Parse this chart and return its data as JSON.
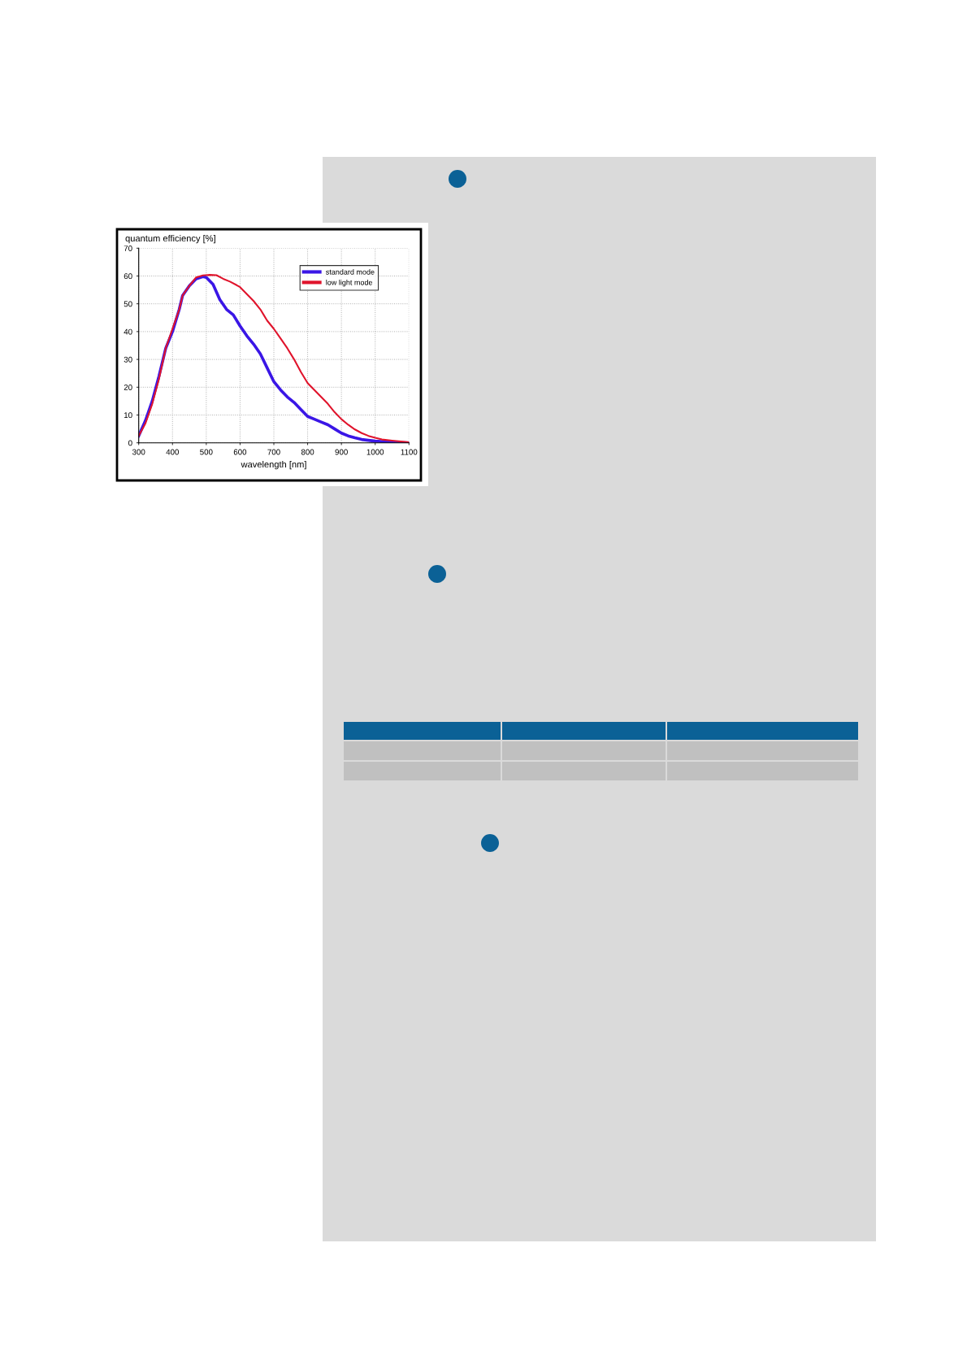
{
  "chart_data": {
    "type": "line",
    "ylabel": "quantum efficiency [%]",
    "xlabel": "wavelength [nm]",
    "xlim": [
      300,
      1100
    ],
    "xticks": [
      300,
      400,
      500,
      600,
      700,
      800,
      900,
      1000,
      1100
    ],
    "ylim": [
      0,
      70
    ],
    "yticks": [
      0,
      10,
      20,
      30,
      40,
      50,
      60,
      70
    ],
    "grid": true,
    "legend": "top right",
    "line_style": "solid",
    "series": [
      {
        "name": "standard mode",
        "color": "#3a16e6",
        "x": [
          300,
          320,
          340,
          360,
          380,
          400,
          420,
          430,
          450,
          470,
          490,
          500,
          520,
          540,
          560,
          580,
          600,
          620,
          640,
          660,
          680,
          700,
          720,
          740,
          760,
          780,
          800,
          820,
          840,
          860,
          880,
          900,
          920,
          940,
          960,
          980,
          1000,
          1050,
          1100
        ],
        "values": [
          2.5,
          8,
          15,
          24,
          34,
          40,
          48,
          53,
          56.5,
          59,
          59.8,
          59.5,
          57,
          51.5,
          48,
          46,
          42,
          38.5,
          35.5,
          32,
          27,
          22,
          19,
          16.5,
          14.5,
          12,
          9.5,
          8.5,
          7.5,
          6.5,
          5,
          3.5,
          2.5,
          1.8,
          1.2,
          0.9,
          0.6,
          0.2,
          0
        ]
      },
      {
        "name": "low light mode",
        "color": "#e0142c",
        "x": [
          300,
          320,
          340,
          360,
          380,
          400,
          420,
          430,
          450,
          470,
          490,
          510,
          530,
          550,
          570,
          590,
          600,
          620,
          640,
          660,
          670,
          680,
          700,
          720,
          740,
          760,
          780,
          800,
          820,
          840,
          860,
          880,
          900,
          920,
          940,
          960,
          980,
          1000,
          1020,
          1050,
          1100
        ],
        "values": [
          2.5,
          7,
          14,
          23,
          34,
          41,
          48,
          53,
          56.5,
          59.5,
          60.2,
          60.4,
          60.3,
          59,
          58,
          56.7,
          56,
          53.5,
          51,
          48,
          46,
          44,
          41,
          37.5,
          34,
          30,
          25.5,
          21.5,
          19,
          16.5,
          14,
          11,
          8.5,
          6.5,
          4.8,
          3.5,
          2.5,
          1.8,
          1.2,
          0.8,
          0.2
        ]
      }
    ]
  }
}
